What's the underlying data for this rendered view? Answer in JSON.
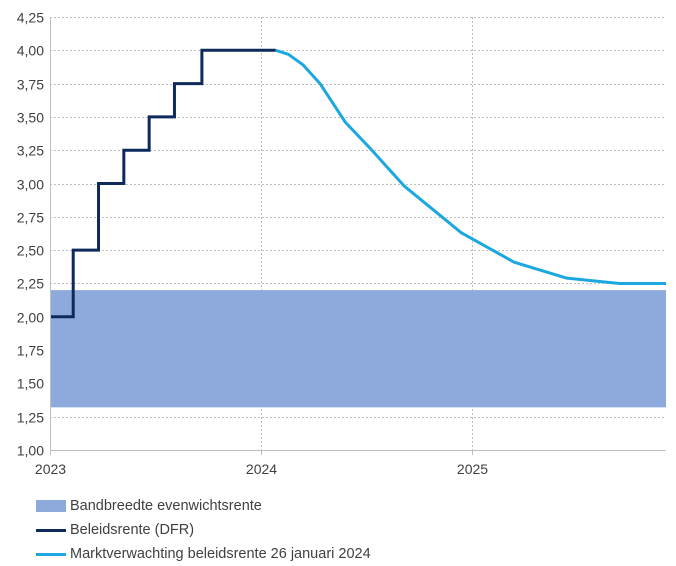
{
  "chart_data": {
    "type": "line",
    "title": "",
    "xlabel": "",
    "ylabel": "",
    "ylim": [
      1.0,
      4.25
    ],
    "yticks": [
      "1,00",
      "1,25",
      "1,50",
      "1,75",
      "2,00",
      "2,25",
      "2,50",
      "2,75",
      "3,00",
      "3,25",
      "3,50",
      "3,75",
      "4,00",
      "4,25"
    ],
    "xlim": [
      2023.0,
      2025.92
    ],
    "xticks": [
      {
        "value": 2023.0,
        "label": "2023"
      },
      {
        "value": 2024.0,
        "label": "2024"
      },
      {
        "value": 2025.0,
        "label": "2025"
      }
    ],
    "grid": true,
    "legend_position": "bottom-left",
    "band": {
      "name": "Bandbreedte evenwichtsrente",
      "x_from": 2023.0,
      "x_to": 2025.92,
      "y_low": 1.32,
      "y_high": 2.2,
      "color": "#8EA9DB"
    },
    "series": [
      {
        "name": "Beleidsrente (DFR)",
        "color": "#0E2A5C",
        "step": true,
        "x": [
          2023.0,
          2023.11,
          2023.23,
          2023.35,
          2023.47,
          2023.59,
          2023.72,
          2024.07
        ],
        "values": [
          2.0,
          2.5,
          3.0,
          3.25,
          3.5,
          3.75,
          4.0,
          4.0
        ]
      },
      {
        "name": "Marktverwachting beleidsrente 26 januari 2024",
        "color": "#1BA8E0",
        "step": false,
        "x": [
          2024.07,
          2024.13,
          2024.2,
          2024.28,
          2024.4,
          2024.52,
          2024.68,
          2024.95,
          2025.2,
          2025.45,
          2025.7,
          2025.92
        ],
        "values": [
          4.0,
          3.97,
          3.89,
          3.75,
          3.46,
          3.26,
          2.98,
          2.63,
          2.41,
          2.29,
          2.25,
          2.25
        ]
      }
    ]
  }
}
